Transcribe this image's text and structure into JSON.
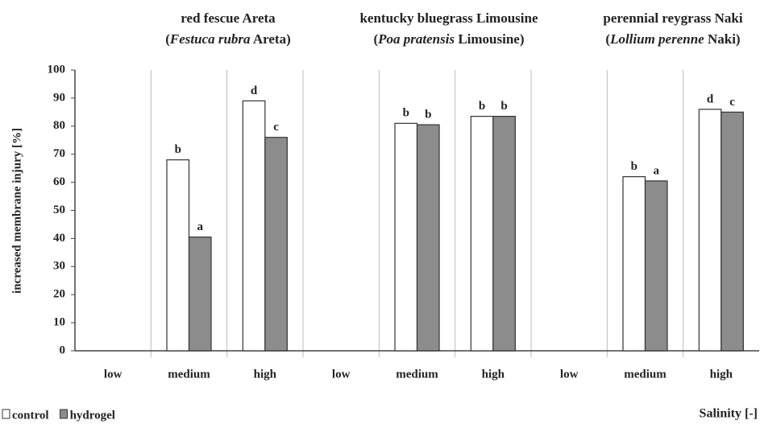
{
  "chart_data": {
    "type": "bar",
    "groups": [
      {
        "title": "red fescue Areta",
        "subtitle_parts": [
          "(",
          "Festuca rubra",
          " Areta)"
        ]
      },
      {
        "title": "kentucky bluegrass Limousine",
        "subtitle_parts": [
          "(",
          "Poa pratensis",
          " Limousine)"
        ]
      },
      {
        "title": "perennial reygrass Naki",
        "subtitle_parts": [
          "(",
          "Lollium perenne",
          " Naki)"
        ]
      }
    ],
    "y_label": "increased membrane injury [%]",
    "x_label": "Salinity [-]",
    "categories": [
      "low",
      "medium",
      "high",
      "low",
      "medium",
      "high",
      "low",
      "medium",
      "high"
    ],
    "series": [
      {
        "name": "control",
        "color": "#ffffff",
        "values": [
          null,
          68,
          89,
          null,
          81,
          83.5,
          null,
          62,
          86
        ],
        "letters": [
          null,
          "b",
          "d",
          null,
          "b",
          "b",
          null,
          "b",
          "d"
        ]
      },
      {
        "name": "hydrogel",
        "color": "#8c8c8c",
        "values": [
          null,
          40.5,
          76,
          null,
          80.5,
          83.5,
          null,
          60.5,
          85
        ],
        "letters": [
          null,
          "a",
          "c",
          null,
          "b",
          "b",
          null,
          "a",
          "c"
        ]
      }
    ],
    "ylim": [
      0,
      100
    ],
    "yticks": [
      0,
      10,
      20,
      30,
      40,
      50,
      60,
      70,
      80,
      90,
      100
    ],
    "grid": false
  }
}
